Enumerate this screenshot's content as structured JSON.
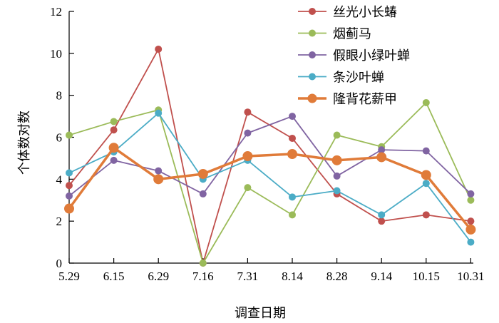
{
  "chart_data": {
    "type": "line",
    "xlabel": "调查日期",
    "ylabel": "个体数对数",
    "categories": [
      "5.29",
      "6.15",
      "6.29",
      "7.16",
      "7.31",
      "8.14",
      "8.28",
      "9.14",
      "10.15",
      "10.31"
    ],
    "ylim": [
      0,
      12
    ],
    "yticks": [
      "0",
      "2",
      "4",
      "6",
      "8",
      "10",
      "12"
    ],
    "legend_position": "top-right",
    "series": [
      {
        "name": "丝光小长蝽",
        "color": "#c0504d",
        "values": [
          3.7,
          6.35,
          10.2,
          0.0,
          7.2,
          5.95,
          3.3,
          2.0,
          2.3,
          2.0
        ]
      },
      {
        "name": "烟蓟马",
        "color": "#9bbb59",
        "values": [
          6.1,
          6.75,
          7.3,
          0.0,
          3.6,
          2.3,
          6.1,
          5.55,
          7.65,
          3.0
        ]
      },
      {
        "name": "假眼小绿叶蝉",
        "color": "#8064a2",
        "values": [
          3.2,
          4.9,
          4.4,
          3.3,
          6.2,
          7.0,
          4.15,
          5.4,
          5.35,
          3.3
        ]
      },
      {
        "name": "条沙叶蝉",
        "color": "#4bacc6",
        "values": [
          4.3,
          5.3,
          7.15,
          4.0,
          4.9,
          3.15,
          3.45,
          2.3,
          3.8,
          1.0
        ]
      },
      {
        "name": "隆背花薪甲",
        "color": "#e07b39",
        "bold": true,
        "values": [
          2.6,
          5.5,
          4.0,
          4.25,
          5.1,
          5.2,
          4.9,
          5.05,
          4.2,
          1.6
        ]
      }
    ]
  }
}
